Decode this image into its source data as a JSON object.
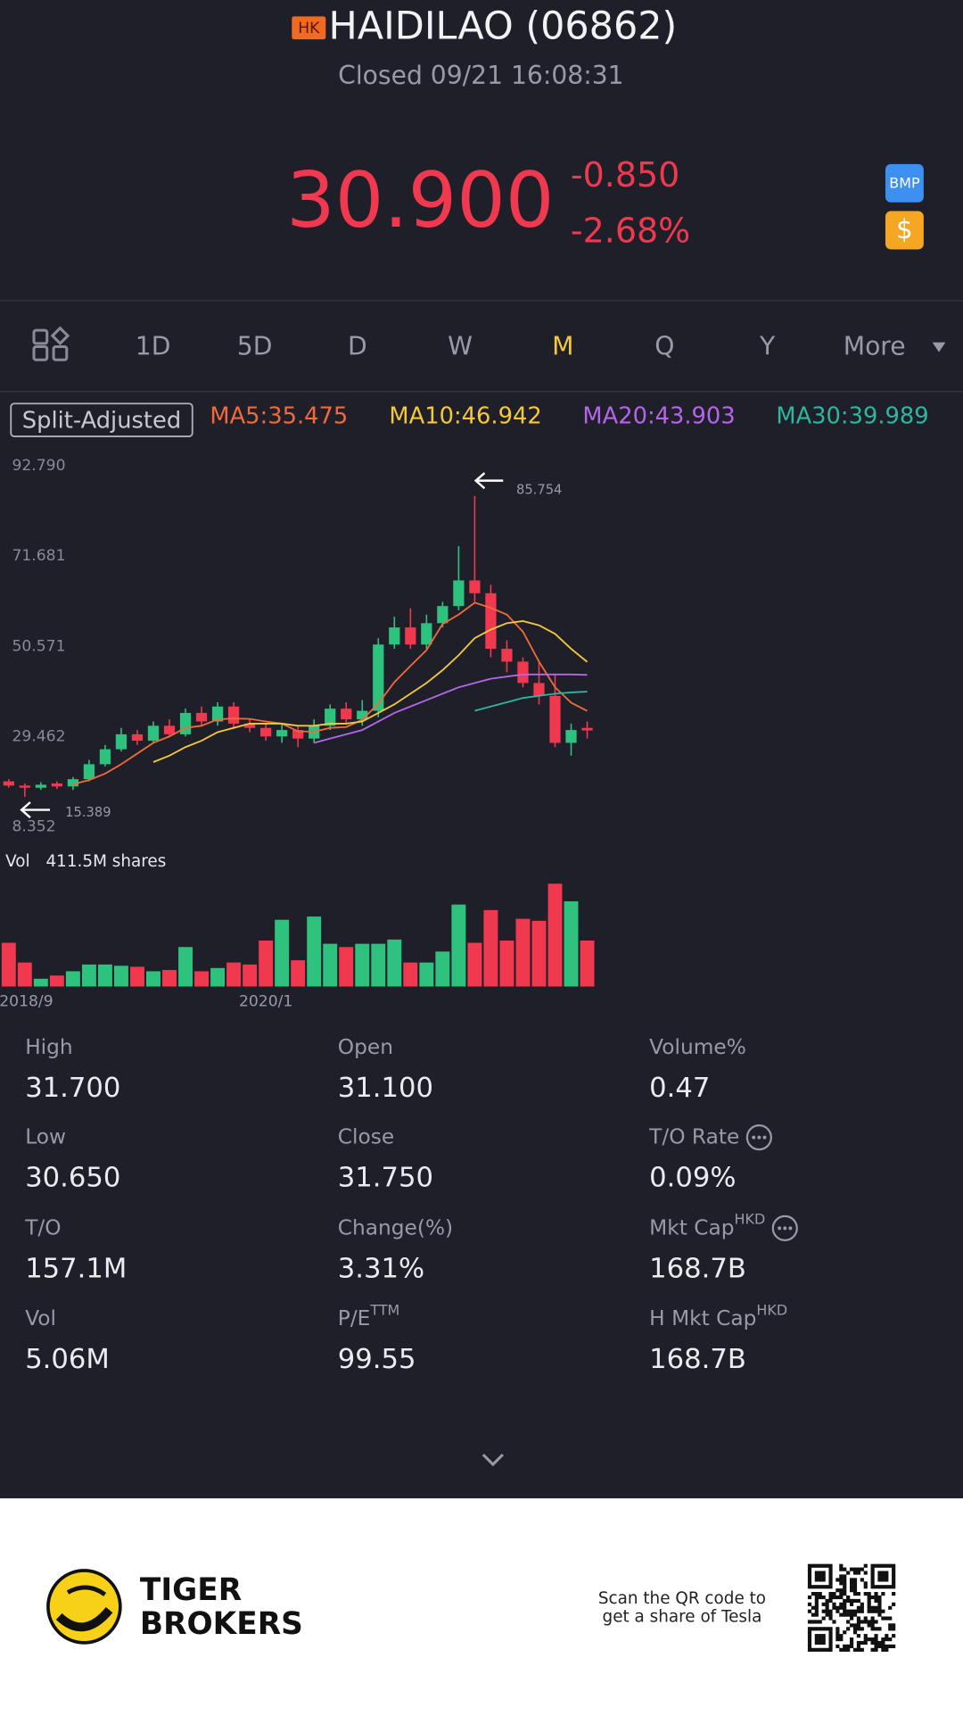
{
  "header": {
    "badge": "HK",
    "title": "HAIDILAO (06862)",
    "status": "Closed 09/21 16:08:31",
    "price": "30.900",
    "change": "-0.850",
    "change_pct": "-2.68%",
    "icons": [
      "BMP",
      "$"
    ]
  },
  "tabs": [
    "1D",
    "5D",
    "D",
    "W",
    "M",
    "Q",
    "Y",
    "More"
  ],
  "active_tab": 4,
  "chart_data": {
    "type": "candlestick",
    "adjustment": "Split-Adjusted",
    "categories": [
      "2018/9",
      null,
      null,
      null,
      null,
      null,
      null,
      null,
      null,
      null,
      null,
      null,
      null,
      null,
      null,
      null,
      "2020/1",
      null,
      null,
      null,
      null,
      null,
      null,
      null,
      null,
      null,
      null,
      null,
      null,
      null,
      null,
      null,
      null,
      null,
      null,
      null,
      null
    ],
    "open": [
      19.0,
      18.0,
      17.5,
      18.5,
      17.8,
      19.5,
      23,
      26.5,
      30,
      28.5,
      32,
      30,
      35,
      33,
      36.5,
      32.5,
      31.5,
      29.5,
      31,
      29,
      32,
      36,
      33.5,
      35.5,
      51,
      55,
      51,
      56,
      60,
      66,
      63,
      50,
      47,
      42,
      39,
      28,
      31.5
    ],
    "close": [
      18.0,
      17.5,
      18.2,
      17.8,
      19.5,
      23,
      26.5,
      30,
      28.5,
      32,
      30,
      35,
      33,
      36.5,
      32.5,
      31.5,
      29.5,
      31,
      29,
      32,
      36,
      33.5,
      35.5,
      51,
      55,
      51,
      56,
      60,
      66,
      63,
      50,
      47,
      42,
      39,
      28,
      31,
      30.9
    ],
    "high": [
      19.5,
      18.5,
      18.8,
      19,
      20,
      24,
      27.5,
      31.5,
      31,
      33,
      33.5,
      36,
      36.5,
      37.5,
      37.5,
      33.5,
      32.5,
      32.5,
      32,
      33.5,
      37,
      37.5,
      38,
      52.5,
      57.5,
      59.5,
      58,
      61,
      74,
      85.754,
      65,
      52,
      48,
      47,
      44,
      32.5,
      33
    ],
    "low": [
      17.5,
      15.389,
      17,
      17.2,
      17,
      19,
      22.5,
      26,
      27.5,
      28,
      29.5,
      29.5,
      32,
      32,
      31.5,
      30.5,
      28.5,
      28,
      27,
      28,
      31,
      32.5,
      32,
      34,
      50,
      50,
      50,
      55,
      59,
      61,
      48,
      44.5,
      41,
      37,
      27,
      25,
      29
    ],
    "up_color": "#2ec27e",
    "down_color": "#f0384f",
    "high_label": "85.754",
    "low_label": "15.389",
    "ylim": [
      8.352,
      92.79
    ],
    "yticks": [
      {
        "value": 92.79,
        "label": "92.790"
      },
      {
        "value": 71.681,
        "label": "71.681"
      },
      {
        "value": 50.571,
        "label": "50.571"
      },
      {
        "value": 29.462,
        "label": "29.462"
      },
      {
        "value": 8.352,
        "label": "8.352"
      }
    ],
    "grid": false,
    "ma": [
      {
        "name": "MA5",
        "label": "MA5:35.475",
        "color": "#f06a3c",
        "values": [
          null,
          null,
          null,
          null,
          18.3,
          19.3,
          20.8,
          23,
          25.5,
          28,
          29.5,
          31.5,
          32,
          33.5,
          33.7,
          33.6,
          33,
          32.5,
          30.7,
          30.6,
          31.5,
          31.7,
          33.4,
          37.2,
          42.2,
          46,
          49.7,
          55.8,
          58,
          60.8,
          59.6,
          58,
          54,
          47,
          41,
          37.4,
          35.475
        ]
      },
      {
        "name": "MA10",
        "label": "MA10:46.942",
        "color": "#f5c83c",
        "values": [
          null,
          null,
          null,
          null,
          null,
          null,
          null,
          null,
          null,
          23.5,
          25,
          27,
          28.5,
          30.5,
          31.5,
          32.5,
          32.5,
          32.5,
          32,
          32,
          32.5,
          32.5,
          33,
          35,
          37,
          39.5,
          42,
          45,
          48.5,
          52.5,
          54.5,
          56,
          56.5,
          55.5,
          53.5,
          50,
          46.942
        ]
      },
      {
        "name": "MA20",
        "label": "MA20:43.903",
        "color": "#b566e8",
        "values": [
          null,
          null,
          null,
          null,
          null,
          null,
          null,
          null,
          null,
          null,
          null,
          null,
          null,
          null,
          null,
          null,
          null,
          null,
          null,
          28,
          29,
          30,
          31,
          33,
          35,
          36.5,
          38,
          39.5,
          41,
          42,
          43,
          43.5,
          44,
          44,
          44,
          44,
          43.903
        ]
      },
      {
        "name": "MA30",
        "label": "MA30:39.989",
        "color": "#2fb5a0",
        "values": [
          null,
          null,
          null,
          null,
          null,
          null,
          null,
          null,
          null,
          null,
          null,
          null,
          null,
          null,
          null,
          null,
          null,
          null,
          null,
          null,
          null,
          null,
          null,
          null,
          null,
          null,
          null,
          null,
          null,
          35.5,
          36.5,
          37.5,
          38.5,
          39,
          39.5,
          39.8,
          39.989
        ]
      }
    ],
    "volume": {
      "label": "Vol",
      "max_label": "411.5M shares",
      "values": [
        175,
        96,
        31,
        44,
        61,
        88,
        88,
        83,
        79,
        61,
        66,
        158,
        61,
        74,
        96,
        88,
        184,
        267,
        105,
        280,
        171,
        158,
        171,
        171,
        188,
        96,
        96,
        140,
        328,
        175,
        306,
        184,
        271,
        263,
        411.5,
        341,
        184
      ]
    }
  },
  "stats": [
    [
      {
        "label": "High",
        "value": "31.700"
      },
      {
        "label": "Low",
        "value": "30.650"
      },
      {
        "label": "T/O",
        "value": "157.1M"
      },
      {
        "label": "Vol",
        "value": "5.06M"
      }
    ],
    [
      {
        "label": "Open",
        "value": "31.100"
      },
      {
        "label": "Close",
        "value": "31.750"
      },
      {
        "label": "Change(%)",
        "value": "3.31%"
      },
      {
        "label": "P/E",
        "sup": "TTM",
        "value": "99.55"
      }
    ],
    [
      {
        "label": "Volume%",
        "value": "0.47"
      },
      {
        "label": "T/O Rate",
        "info": true,
        "value": "0.09%"
      },
      {
        "label": "Mkt Cap",
        "sup": "HKD",
        "info": true,
        "value": "168.7B"
      },
      {
        "label": "H Mkt Cap",
        "sup": "HKD",
        "value": "168.7B"
      }
    ]
  ],
  "footer": {
    "brand": [
      "TIGER",
      "BROKERS"
    ],
    "qr_caption": [
      "Scan the QR code to",
      "get a share of Tesla"
    ]
  }
}
